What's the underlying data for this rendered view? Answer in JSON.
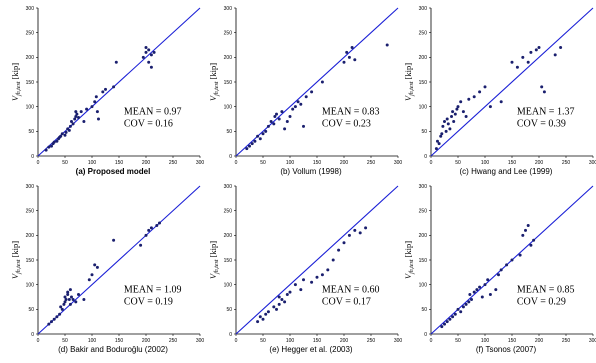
{
  "figure": {
    "ylabel_symbol": "V",
    "ylabel_subscript": "jh,test",
    "ylabel_unit": "[kip]"
  },
  "chart_data": [
    {
      "type": "scatter",
      "title": "(a) Proposed model",
      "caption_bold": true,
      "xlim": [
        0,
        300
      ],
      "ylim": [
        0,
        300
      ],
      "xticks": [
        0,
        50,
        100,
        150,
        200,
        250,
        300
      ],
      "yticks": [
        0,
        50,
        100,
        150,
        200,
        250,
        300
      ],
      "grid": false,
      "reference_line": "y = x",
      "mean_label": "MEAN = 0.97",
      "cov_label": "COV   = 0.16",
      "marker_color": "#1a1f6e",
      "line_color": "#1a1fd6",
      "x": [
        15,
        20,
        25,
        28,
        30,
        35,
        38,
        40,
        42,
        45,
        50,
        52,
        55,
        58,
        60,
        62,
        65,
        68,
        70,
        70,
        72,
        75,
        80,
        85,
        90,
        100,
        105,
        108,
        110,
        112,
        120,
        125,
        140,
        145,
        195,
        200,
        200,
        205,
        205,
        210,
        210,
        215
      ],
      "y": [
        12,
        18,
        20,
        25,
        28,
        30,
        35,
        38,
        40,
        45,
        42,
        48,
        55,
        52,
        60,
        70,
        65,
        75,
        80,
        90,
        85,
        78,
        90,
        70,
        95,
        100,
        110,
        120,
        90,
        75,
        130,
        135,
        140,
        190,
        200,
        220,
        210,
        190,
        215,
        180,
        205,
        210
      ]
    },
    {
      "type": "scatter",
      "title": "(b) Vollum (1998)",
      "caption_bold": false,
      "xlim": [
        0,
        300
      ],
      "ylim": [
        0,
        300
      ],
      "xticks": [
        0,
        50,
        100,
        150,
        200,
        250,
        300
      ],
      "yticks": [
        0,
        50,
        100,
        150,
        200,
        250,
        300
      ],
      "grid": false,
      "reference_line": "y = x",
      "mean_label": "MEAN = 0.83",
      "cov_label": "COV   = 0.23",
      "marker_color": "#1a1f6e",
      "line_color": "#1a1fd6",
      "x": [
        20,
        25,
        30,
        35,
        40,
        45,
        50,
        55,
        60,
        65,
        70,
        72,
        75,
        80,
        85,
        90,
        95,
        100,
        105,
        110,
        115,
        120,
        125,
        130,
        140,
        160,
        200,
        205,
        210,
        215,
        220,
        280
      ],
      "y": [
        15,
        20,
        25,
        30,
        40,
        35,
        45,
        50,
        60,
        70,
        65,
        80,
        85,
        75,
        90,
        55,
        70,
        80,
        95,
        100,
        110,
        105,
        60,
        120,
        130,
        150,
        190,
        210,
        200,
        220,
        195,
        225
      ]
    },
    {
      "type": "scatter",
      "title": "(c) Hwang and Lee (1999)",
      "caption_bold": false,
      "xlim": [
        0,
        300
      ],
      "ylim": [
        0,
        300
      ],
      "xticks": [
        0,
        50,
        100,
        150,
        200,
        250,
        300
      ],
      "yticks": [
        0,
        50,
        100,
        150,
        200,
        250,
        300
      ],
      "grid": false,
      "reference_line": "y = x",
      "mean_label": "MEAN = 1.37",
      "cov_label": "COV   = 0.39",
      "marker_color": "#1a1f6e",
      "line_color": "#1a1fd6",
      "x": [
        10,
        12,
        15,
        18,
        20,
        22,
        25,
        28,
        30,
        32,
        35,
        38,
        40,
        42,
        45,
        48,
        50,
        55,
        60,
        65,
        70,
        80,
        90,
        100,
        110,
        130,
        150,
        160,
        170,
        180,
        185,
        195,
        200,
        205,
        210,
        230,
        240
      ],
      "y": [
        15,
        30,
        25,
        40,
        45,
        60,
        70,
        50,
        75,
        65,
        55,
        80,
        90,
        70,
        85,
        95,
        100,
        110,
        90,
        80,
        115,
        120,
        130,
        140,
        100,
        110,
        190,
        180,
        200,
        190,
        210,
        215,
        220,
        140,
        130,
        205,
        220
      ]
    },
    {
      "type": "scatter",
      "title": "(d) Bakir and Boduroğlu (2002)",
      "caption_bold": false,
      "xlim": [
        0,
        300
      ],
      "ylim": [
        0,
        300
      ],
      "xticks": [
        0,
        50,
        100,
        150,
        200,
        250,
        300
      ],
      "yticks": [
        0,
        50,
        100,
        150,
        200,
        250,
        300
      ],
      "grid": false,
      "reference_line": "y = x",
      "mean_label": "MEAN = 1.09",
      "cov_label": "COV   = 0.19",
      "marker_color": "#1a1f6e",
      "line_color": "#1a1fd6",
      "x": [
        20,
        25,
        30,
        35,
        40,
        42,
        45,
        48,
        50,
        50,
        52,
        55,
        55,
        58,
        60,
        60,
        62,
        65,
        70,
        75,
        85,
        95,
        100,
        105,
        110,
        140,
        190,
        200,
        205,
        210,
        220,
        225
      ],
      "y": [
        20,
        25,
        30,
        35,
        40,
        55,
        50,
        60,
        65,
        75,
        70,
        85,
        80,
        70,
        60,
        90,
        75,
        70,
        65,
        80,
        70,
        110,
        120,
        140,
        135,
        190,
        180,
        200,
        210,
        215,
        220,
        225
      ]
    },
    {
      "type": "scatter",
      "title": "(e) Hegger et al. (2003)",
      "caption_bold": false,
      "xlim": [
        0,
        300
      ],
      "ylim": [
        0,
        300
      ],
      "xticks": [
        0,
        50,
        100,
        150,
        200,
        250,
        300
      ],
      "yticks": [
        0,
        50,
        100,
        150,
        200,
        250,
        300
      ],
      "grid": false,
      "reference_line": "y = x",
      "mean_label": "MEAN = 0.60",
      "cov_label": "COV   = 0.17",
      "marker_color": "#1a1f6e",
      "line_color": "#1a1fd6",
      "x": [
        40,
        45,
        50,
        55,
        60,
        70,
        75,
        80,
        80,
        85,
        90,
        95,
        100,
        110,
        120,
        125,
        140,
        150,
        160,
        170,
        180,
        190,
        200,
        210,
        220,
        230,
        240
      ],
      "y": [
        25,
        35,
        30,
        40,
        45,
        55,
        50,
        60,
        75,
        70,
        65,
        80,
        85,
        100,
        90,
        110,
        105,
        115,
        120,
        130,
        150,
        170,
        185,
        200,
        210,
        205,
        215
      ]
    },
    {
      "type": "scatter",
      "title": "(f) Tsonos (2007)",
      "caption_bold": false,
      "xlim": [
        0,
        300
      ],
      "ylim": [
        0,
        300
      ],
      "xticks": [
        0,
        50,
        100,
        150,
        200,
        250,
        300
      ],
      "yticks": [
        0,
        50,
        100,
        150,
        200,
        250,
        300
      ],
      "grid": false,
      "reference_line": "y = x",
      "mean_label": "MEAN = 0.85",
      "cov_label": "COV   = 0.29",
      "marker_color": "#1a1f6e",
      "line_color": "#1a1fd6",
      "x": [
        20,
        25,
        30,
        35,
        40,
        45,
        50,
        55,
        60,
        65,
        70,
        72,
        75,
        80,
        85,
        90,
        95,
        100,
        105,
        110,
        120,
        125,
        130,
        140,
        150,
        165,
        170,
        175,
        180,
        185,
        190
      ],
      "y": [
        15,
        20,
        25,
        30,
        35,
        40,
        50,
        45,
        55,
        60,
        65,
        80,
        70,
        85,
        90,
        95,
        75,
        100,
        110,
        80,
        90,
        120,
        130,
        140,
        150,
        160,
        200,
        210,
        220,
        180,
        190
      ]
    }
  ]
}
